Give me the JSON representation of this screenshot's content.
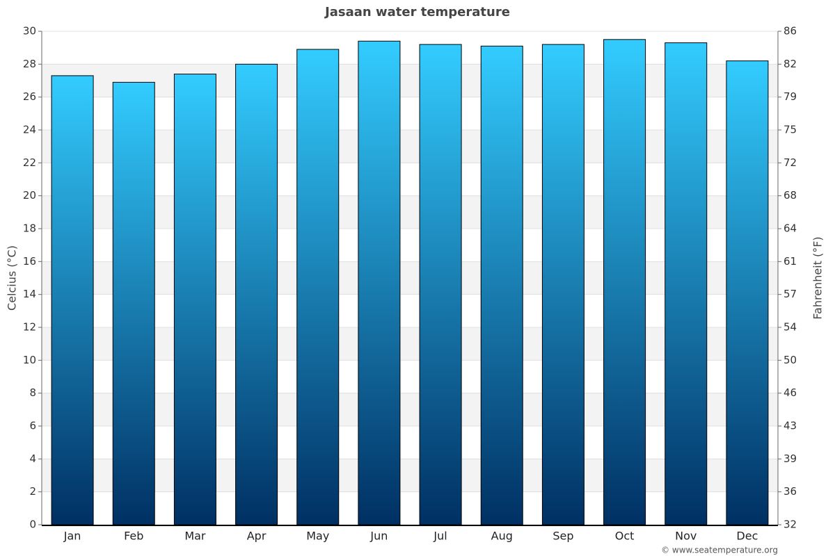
{
  "chart_data": {
    "type": "bar",
    "title": "Jasaan water temperature",
    "y_label": "Celcius (°C)",
    "y2_label": "Fahrenheit (°F)",
    "credit": "© www.seatemperature.org",
    "categories": [
      "Jan",
      "Feb",
      "Mar",
      "Apr",
      "May",
      "Jun",
      "Jul",
      "Aug",
      "Sep",
      "Oct",
      "Nov",
      "Dec"
    ],
    "values": [
      27.3,
      26.9,
      27.4,
      28.0,
      28.9,
      29.4,
      29.2,
      29.1,
      29.2,
      29.5,
      29.3,
      28.2
    ],
    "color": "#1a8fd0",
    "ylim": [
      0,
      30
    ],
    "yticks": [
      0,
      2,
      4,
      6,
      8,
      10,
      12,
      14,
      16,
      18,
      20,
      22,
      24,
      26,
      28,
      30
    ],
    "y2lim": [
      32,
      86
    ],
    "y2ticks": [
      32,
      {
        "value": 35.6,
        "label": "36"
      },
      {
        "value": 39.2,
        "label": "39"
      },
      {
        "value": 42.8,
        "label": "43"
      },
      {
        "value": 46.4,
        "label": "46"
      },
      50,
      {
        "value": 53.6,
        "label": "54"
      },
      {
        "value": 57.2,
        "label": "57"
      },
      {
        "value": 60.8,
        "label": "61"
      },
      {
        "value": 64.4,
        "label": "64"
      },
      68,
      {
        "value": 71.6,
        "label": "72"
      },
      {
        "value": 75.2,
        "label": "75"
      },
      {
        "value": 78.8,
        "label": "79"
      },
      {
        "value": 82.4,
        "label": "82"
      },
      86
    ],
    "grid": true
  }
}
